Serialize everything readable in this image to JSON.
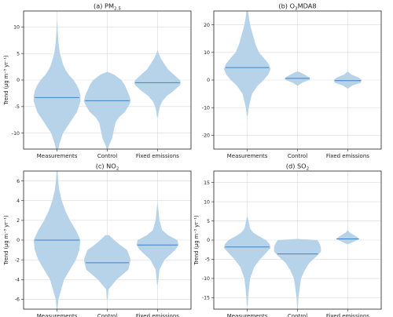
{
  "chart_data": [
    {
      "type": "violin",
      "title": "(a) PM2.5",
      "title_base": "(a) PM",
      "title_sub": "2.5",
      "ylabel": "Trend (μg m⁻³ yr⁻¹)",
      "ylim": [
        -13,
        13
      ],
      "yticks": [
        -10,
        -5,
        0,
        5,
        10
      ],
      "categories": [
        "Measurements",
        "Control",
        "Fixed emissions"
      ],
      "grid": true,
      "series": [
        {
          "category": "Measurements",
          "median": -3.3,
          "profile": [
            [
              -13,
              0.05
            ],
            [
              -12,
              0.1
            ],
            [
              -10,
              0.25
            ],
            [
              -8,
              0.55
            ],
            [
              -6,
              0.85
            ],
            [
              -4,
              1.0
            ],
            [
              -3,
              1.0
            ],
            [
              -2,
              0.95
            ],
            [
              -1,
              0.85
            ],
            [
              0,
              0.7
            ],
            [
              1,
              0.5
            ],
            [
              2,
              0.35
            ],
            [
              3,
              0.25
            ],
            [
              5,
              0.12
            ],
            [
              7,
              0.06
            ],
            [
              9,
              0.03
            ],
            [
              11,
              0.01
            ]
          ]
        },
        {
          "category": "Control",
          "median": -3.9,
          "profile": [
            [
              -13,
              0.02
            ],
            [
              -12,
              0.1
            ],
            [
              -11,
              0.2
            ],
            [
              -10,
              0.25
            ],
            [
              -9,
              0.3
            ],
            [
              -8,
              0.35
            ],
            [
              -7,
              0.5
            ],
            [
              -6,
              0.75
            ],
            [
              -5,
              0.9
            ],
            [
              -4,
              1.0
            ],
            [
              -3,
              0.95
            ],
            [
              -2,
              0.85
            ],
            [
              -1,
              0.75
            ],
            [
              0,
              0.6
            ],
            [
              1,
              0.3
            ],
            [
              1.3,
              0.15
            ],
            [
              1.5,
              0.02
            ]
          ]
        },
        {
          "category": "Fixed emissions",
          "median": -0.5,
          "profile": [
            [
              -7,
              0.02
            ],
            [
              -6,
              0.05
            ],
            [
              -5,
              0.1
            ],
            [
              -4,
              0.2
            ],
            [
              -3,
              0.4
            ],
            [
              -2,
              0.7
            ],
            [
              -1,
              0.95
            ],
            [
              -0.5,
              1.0
            ],
            [
              0,
              0.95
            ],
            [
              1,
              0.7
            ],
            [
              2,
              0.45
            ],
            [
              3,
              0.3
            ],
            [
              4,
              0.15
            ],
            [
              5,
              0.05
            ],
            [
              5.5,
              0.01
            ]
          ]
        }
      ]
    },
    {
      "type": "violin",
      "title": "(b) O3MDA8",
      "title_base": "(b) O",
      "title_sub": "3",
      "title_rest": "MDA8",
      "ylabel": "",
      "ylim": [
        -25,
        25
      ],
      "yticks": [
        -20,
        -10,
        0,
        10,
        20
      ],
      "categories": [
        "Measurements",
        "Control",
        "Fixed emissions"
      ],
      "grid": true,
      "series": [
        {
          "category": "Measurements",
          "median": 4.5,
          "profile": [
            [
              -13,
              0.02
            ],
            [
              -10,
              0.06
            ],
            [
              -5,
              0.2
            ],
            [
              -2,
              0.45
            ],
            [
              0,
              0.7
            ],
            [
              2,
              0.9
            ],
            [
              4,
              1.0
            ],
            [
              6,
              0.9
            ],
            [
              8,
              0.7
            ],
            [
              10,
              0.5
            ],
            [
              13,
              0.35
            ],
            [
              16,
              0.25
            ],
            [
              19,
              0.15
            ],
            [
              22,
              0.08
            ],
            [
              25,
              0.03
            ]
          ]
        },
        {
          "category": "Control",
          "median": 0.6,
          "profile": [
            [
              -2,
              0.02
            ],
            [
              -1,
              0.2
            ],
            [
              0,
              0.5
            ],
            [
              0.5,
              0.55
            ],
            [
              1,
              0.5
            ],
            [
              2,
              0.3
            ],
            [
              3,
              0.05
            ]
          ]
        },
        {
          "category": "Fixed emissions",
          "median": -0.2,
          "profile": [
            [
              -3,
              0.02
            ],
            [
              -2,
              0.2
            ],
            [
              -1,
              0.55
            ],
            [
              0,
              0.6
            ],
            [
              1,
              0.45
            ],
            [
              2,
              0.15
            ],
            [
              3,
              0.02
            ]
          ]
        }
      ]
    },
    {
      "type": "violin",
      "title": "(c) NO2",
      "title_base": "(c) NO",
      "title_sub": "2",
      "ylabel": "Trend (μg m⁻³ yr⁻¹)",
      "ylim": [
        -7,
        7
      ],
      "yticks": [
        -6,
        -4,
        -2,
        0,
        2,
        4,
        6
      ],
      "categories": [
        "Measurements",
        "Control",
        "Fixed emissions"
      ],
      "grid": true,
      "series": [
        {
          "category": "Measurements",
          "median": 0.0,
          "profile": [
            [
              -7,
              0.02
            ],
            [
              -6,
              0.06
            ],
            [
              -4,
              0.3
            ],
            [
              -3,
              0.55
            ],
            [
              -2,
              0.8
            ],
            [
              -1,
              0.95
            ],
            [
              0,
              1.0
            ],
            [
              1,
              0.8
            ],
            [
              2,
              0.55
            ],
            [
              3,
              0.35
            ],
            [
              4,
              0.2
            ],
            [
              5,
              0.1
            ],
            [
              6,
              0.05
            ],
            [
              7,
              0.02
            ]
          ]
        },
        {
          "category": "Control",
          "median": -2.3,
          "profile": [
            [
              -6,
              0.02
            ],
            [
              -5,
              0.05
            ],
            [
              -4,
              0.4
            ],
            [
              -3,
              0.9
            ],
            [
              -2,
              1.0
            ],
            [
              -1,
              0.85
            ],
            [
              -0.5,
              0.55
            ],
            [
              0,
              0.3
            ],
            [
              0.5,
              0.08
            ]
          ]
        },
        {
          "category": "Fixed emissions",
          "median": -0.5,
          "profile": [
            [
              -4.5,
              0.02
            ],
            [
              -3,
              0.08
            ],
            [
              -2,
              0.3
            ],
            [
              -1,
              0.75
            ],
            [
              -0.5,
              0.9
            ],
            [
              0,
              0.85
            ],
            [
              0.5,
              0.45
            ],
            [
              1,
              0.2
            ],
            [
              2,
              0.08
            ],
            [
              3,
              0.04
            ],
            [
              3.7,
              0.01
            ]
          ]
        }
      ]
    },
    {
      "type": "violin",
      "title": "(d) SO2",
      "title_base": "(d) SO",
      "title_sub": "2",
      "ylabel": "Trend (μg m⁻³ yr⁻¹)",
      "ylim": [
        -18,
        18
      ],
      "yticks": [
        -15,
        -10,
        -5,
        0,
        5,
        10,
        15
      ],
      "categories": [
        "Measurements",
        "Control",
        "Fixed emissions"
      ],
      "grid": true,
      "series": [
        {
          "category": "Measurements",
          "median": -1.8,
          "profile": [
            [
              -17,
              0.02
            ],
            [
              -14,
              0.05
            ],
            [
              -10,
              0.12
            ],
            [
              -7,
              0.3
            ],
            [
              -5,
              0.55
            ],
            [
              -3,
              0.85
            ],
            [
              -2,
              1.0
            ],
            [
              -1,
              0.95
            ],
            [
              0,
              0.8
            ],
            [
              1,
              0.5
            ],
            [
              2,
              0.25
            ],
            [
              3,
              0.12
            ],
            [
              5,
              0.05
            ],
            [
              6,
              0.02
            ]
          ]
        },
        {
          "category": "Control",
          "median": -3.6,
          "profile": [
            [
              -18,
              0.01
            ],
            [
              -15,
              0.04
            ],
            [
              -10,
              0.15
            ],
            [
              -8,
              0.3
            ],
            [
              -6,
              0.5
            ],
            [
              -4,
              0.85
            ],
            [
              -3,
              1.0
            ],
            [
              -2,
              1.0
            ],
            [
              -1,
              0.95
            ],
            [
              0,
              0.85
            ],
            [
              0.3,
              0.02
            ]
          ]
        },
        {
          "category": "Fixed emissions",
          "median": 0.3,
          "profile": [
            [
              -1,
              0.05
            ],
            [
              0,
              0.4
            ],
            [
              0.3,
              0.5
            ],
            [
              1,
              0.35
            ],
            [
              2,
              0.08
            ],
            [
              2.5,
              0.02
            ]
          ]
        }
      ]
    }
  ]
}
